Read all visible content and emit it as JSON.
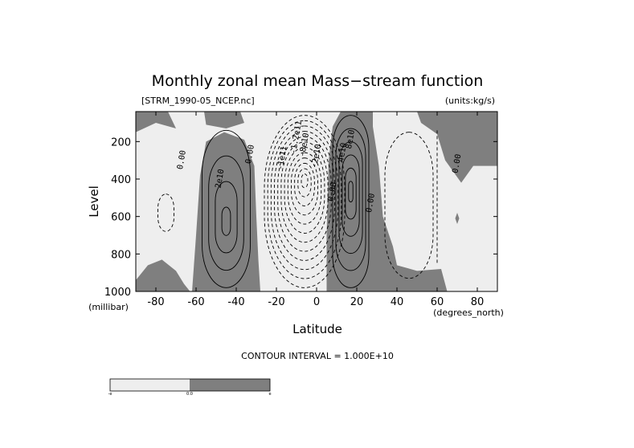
{
  "chart_data": {
    "type": "heatmap",
    "title": "Monthly zonal mean Mass−stream function",
    "file_label": "[STRM_1990-05_NCEP.nc]",
    "units_label": "(units:kg/s)",
    "xlabel": "Latitude",
    "xlabel_units": "(degrees_north)",
    "ylabel": "Level",
    "ylabel_units": "(millibar)",
    "xlim": [
      -90,
      90
    ],
    "ylim": [
      1000,
      40
    ],
    "y_reversed": true,
    "x_ticks": [
      -80,
      -60,
      -40,
      -20,
      0,
      20,
      40,
      60,
      80
    ],
    "x_tick_labels": [
      "-80",
      "-60",
      "-40",
      "-20",
      "0",
      "20",
      "40",
      "60",
      "80"
    ],
    "y_ticks": [
      200,
      400,
      600,
      800,
      1000
    ],
    "y_tick_labels": [
      "200",
      "400",
      "600",
      "800",
      "1000"
    ],
    "contour_interval_text": "CONTOUR INTERVAL = 1.000E+10",
    "contour_interval": 10000000000,
    "shading": {
      "negative": "#eeeeee",
      "positive": "#7f7f7f"
    },
    "contour_labels": [
      {
        "text": "0.00",
        "lat": -66,
        "level": 300
      },
      {
        "text": "2e10",
        "lat": -47,
        "level": 400
      },
      {
        "text": "0.00",
        "lat": -32,
        "level": 270
      },
      {
        "text": "-1e11",
        "lat": -16,
        "level": 290
      },
      {
        "text": "-1.2e11",
        "lat": -9,
        "level": 180
      },
      {
        "text": "-8e10",
        "lat": -5,
        "level": 220
      },
      {
        "text": "-2e10",
        "lat": 1,
        "level": 280
      },
      {
        "text": "0.00",
        "lat": 9,
        "level": 470
      },
      {
        "text": "4e10",
        "lat": 14,
        "level": 260
      },
      {
        "text": "8e10",
        "lat": 18,
        "level": 190
      },
      {
        "text": "0.00",
        "lat": 28,
        "level": 530
      },
      {
        "text": "0.00",
        "lat": 71,
        "level": 320
      }
    ],
    "grid": false,
    "colorbar": {
      "labels": [
        "-e",
        "0.0",
        "e"
      ],
      "colors": [
        "#eeeeee",
        "#7f7f7f"
      ]
    }
  }
}
